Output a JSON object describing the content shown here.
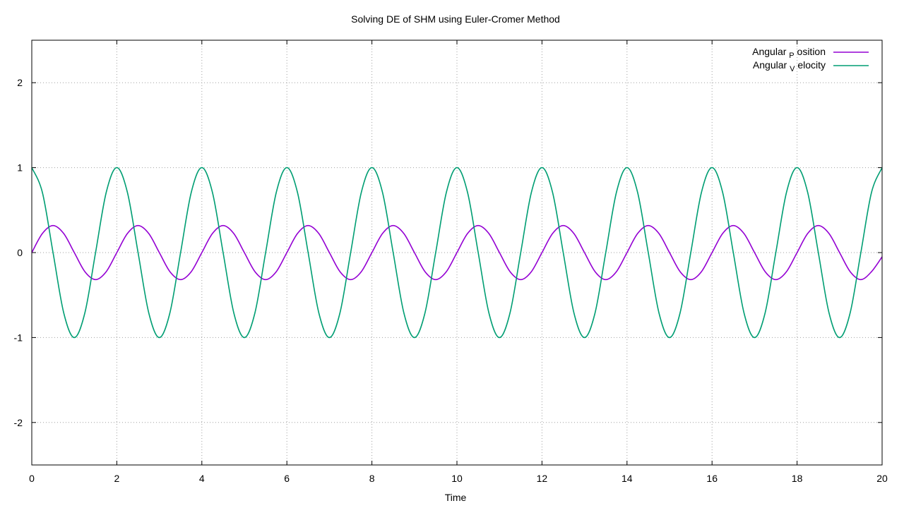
{
  "chart_data": {
    "type": "line",
    "title": "Solving DE of SHM using Euler-Cromer Method",
    "xlabel": "Time",
    "ylabel": "",
    "xlim": [
      0,
      20
    ],
    "ylim": [
      -2.5,
      2.5
    ],
    "xticks": [
      0,
      2,
      4,
      6,
      8,
      10,
      12,
      14,
      16,
      18,
      20
    ],
    "yticks": [
      -2,
      -1,
      0,
      1,
      2
    ],
    "xtick_labels": [
      "0",
      "2",
      "4",
      "6",
      "8",
      "10",
      "12",
      "14",
      "16",
      "18",
      "20"
    ],
    "ytick_labels": [
      "-2",
      "-1",
      "0",
      "1",
      "2"
    ],
    "grid": true,
    "legend_position": "top-right",
    "legend": [
      {
        "prefix": "Angular",
        "sub": "P",
        "suffix": "osition"
      },
      {
        "prefix": "Angular",
        "sub": "V",
        "suffix": "elocity"
      }
    ],
    "series": [
      {
        "color": "#9400d3",
        "x": [
          0,
          0.25,
          0.5,
          0.75,
          1,
          1.25,
          1.5,
          1.75,
          2,
          2.25,
          2.5,
          2.75,
          3,
          3.25,
          3.5,
          3.75,
          4,
          4.25,
          4.5,
          4.75,
          5,
          5.25,
          5.5,
          5.75,
          6,
          6.25,
          6.5,
          6.75,
          7,
          7.25,
          7.5,
          7.75,
          8,
          8.25,
          8.5,
          8.75,
          9,
          9.25,
          9.5,
          9.75,
          10,
          10.25,
          10.5,
          10.75,
          11,
          11.25,
          11.5,
          11.75,
          12,
          12.25,
          12.5,
          12.75,
          13,
          13.25,
          13.5,
          13.75,
          14,
          14.25,
          14.5,
          14.75,
          15,
          15.25,
          15.5,
          15.75,
          16,
          16.25,
          16.5,
          16.75,
          17,
          17.25,
          17.5,
          17.75,
          18,
          18.25,
          18.5,
          18.75,
          19,
          19.25,
          19.5,
          19.75,
          20
        ],
        "y": [
          0,
          0.225,
          0.318,
          0.225,
          0,
          -0.225,
          -0.318,
          -0.225,
          0,
          0.225,
          0.318,
          0.225,
          0,
          -0.225,
          -0.318,
          -0.225,
          0,
          0.225,
          0.318,
          0.225,
          0,
          -0.225,
          -0.318,
          -0.225,
          0,
          0.225,
          0.318,
          0.225,
          0,
          -0.225,
          -0.318,
          -0.225,
          0,
          0.225,
          0.318,
          0.225,
          0,
          -0.225,
          -0.318,
          -0.225,
          0,
          0.225,
          0.318,
          0.225,
          0,
          -0.225,
          -0.318,
          -0.225,
          0,
          0.225,
          0.318,
          0.225,
          0,
          -0.225,
          -0.318,
          -0.225,
          0,
          0.225,
          0.318,
          0.225,
          0,
          -0.225,
          -0.318,
          -0.225,
          0,
          0.225,
          0.318,
          0.225,
          0,
          -0.225,
          -0.318,
          -0.225,
          0,
          0.225,
          0.318,
          0.225,
          0,
          -0.225,
          -0.318,
          -0.225,
          -0.05
        ]
      },
      {
        "color": "#009e73",
        "x": [
          0,
          0.25,
          0.5,
          0.75,
          1,
          1.25,
          1.5,
          1.75,
          2,
          2.25,
          2.5,
          2.75,
          3,
          3.25,
          3.5,
          3.75,
          4,
          4.25,
          4.5,
          4.75,
          5,
          5.25,
          5.5,
          5.75,
          6,
          6.25,
          6.5,
          6.75,
          7,
          7.25,
          7.5,
          7.75,
          8,
          8.25,
          8.5,
          8.75,
          9,
          9.25,
          9.5,
          9.75,
          10,
          10.25,
          10.5,
          10.75,
          11,
          11.25,
          11.5,
          11.75,
          12,
          12.25,
          12.5,
          12.75,
          13,
          13.25,
          13.5,
          13.75,
          14,
          14.25,
          14.5,
          14.75,
          15,
          15.25,
          15.5,
          15.75,
          16,
          16.25,
          16.5,
          16.75,
          17,
          17.25,
          17.5,
          17.75,
          18,
          18.25,
          18.5,
          18.75,
          19,
          19.25,
          19.5,
          19.75,
          20
        ],
        "y": [
          1,
          0.707,
          0,
          -0.707,
          -1,
          -0.707,
          0,
          0.707,
          1,
          0.707,
          0,
          -0.707,
          -1,
          -0.707,
          0,
          0.707,
          1,
          0.707,
          0,
          -0.707,
          -1,
          -0.707,
          0,
          0.707,
          1,
          0.707,
          0,
          -0.707,
          -1,
          -0.707,
          0,
          0.707,
          1,
          0.707,
          0,
          -0.707,
          -1,
          -0.707,
          0,
          0.707,
          1,
          0.707,
          0,
          -0.707,
          -1,
          -0.707,
          0,
          0.707,
          1,
          0.707,
          0,
          -0.707,
          -1,
          -0.707,
          0,
          0.707,
          1,
          0.707,
          0,
          -0.707,
          -1,
          -0.707,
          0,
          0.707,
          1,
          0.707,
          0,
          -0.707,
          -1,
          -0.707,
          0,
          0.707,
          1,
          0.707,
          0,
          -0.707,
          -1,
          -0.707,
          0,
          0.707,
          1
        ]
      }
    ]
  }
}
